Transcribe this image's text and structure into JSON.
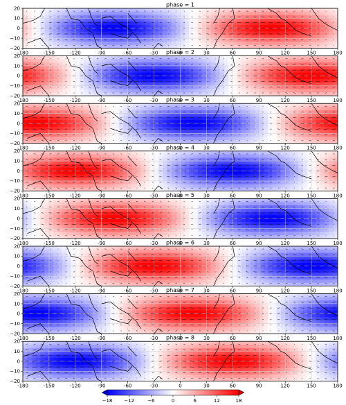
{
  "chart_data": {
    "type": "heatmap",
    "panels": [
      {
        "title": "phase = 1",
        "phase": 1
      },
      {
        "title": "phase = 2",
        "phase": 2
      },
      {
        "title": "phase = 3",
        "phase": 3
      },
      {
        "title": "phase = 4",
        "phase": 4
      },
      {
        "title": "phase = 5",
        "phase": 5
      },
      {
        "title": "phase = 6",
        "phase": 6
      },
      {
        "title": "phase = 7",
        "phase": 7
      },
      {
        "title": "phase = 8",
        "phase": 8
      }
    ],
    "xlim": [
      -180,
      180
    ],
    "ylim": [
      -20,
      20
    ],
    "xticks": [
      "-180",
      "-150",
      "-120",
      "-90",
      "-60",
      "-30",
      "0",
      "30",
      "60",
      "90",
      "120",
      "150",
      "180"
    ],
    "yticks": [
      "20",
      "10",
      "0",
      "−10",
      "−20"
    ],
    "grid": true,
    "colorbar": {
      "orientation": "horizontal",
      "position": "bottom",
      "range": [
        -18,
        18
      ],
      "ticks": [
        "−18",
        "−12",
        "−6",
        "0",
        "6",
        "12",
        "18"
      ],
      "colormap": "bwr",
      "colors": {
        "low": "#1f2fe6",
        "mid": "#ffffff",
        "high": "#e8201c"
      }
    },
    "overlay": "wind vectors (quiver) and coastlines"
  }
}
